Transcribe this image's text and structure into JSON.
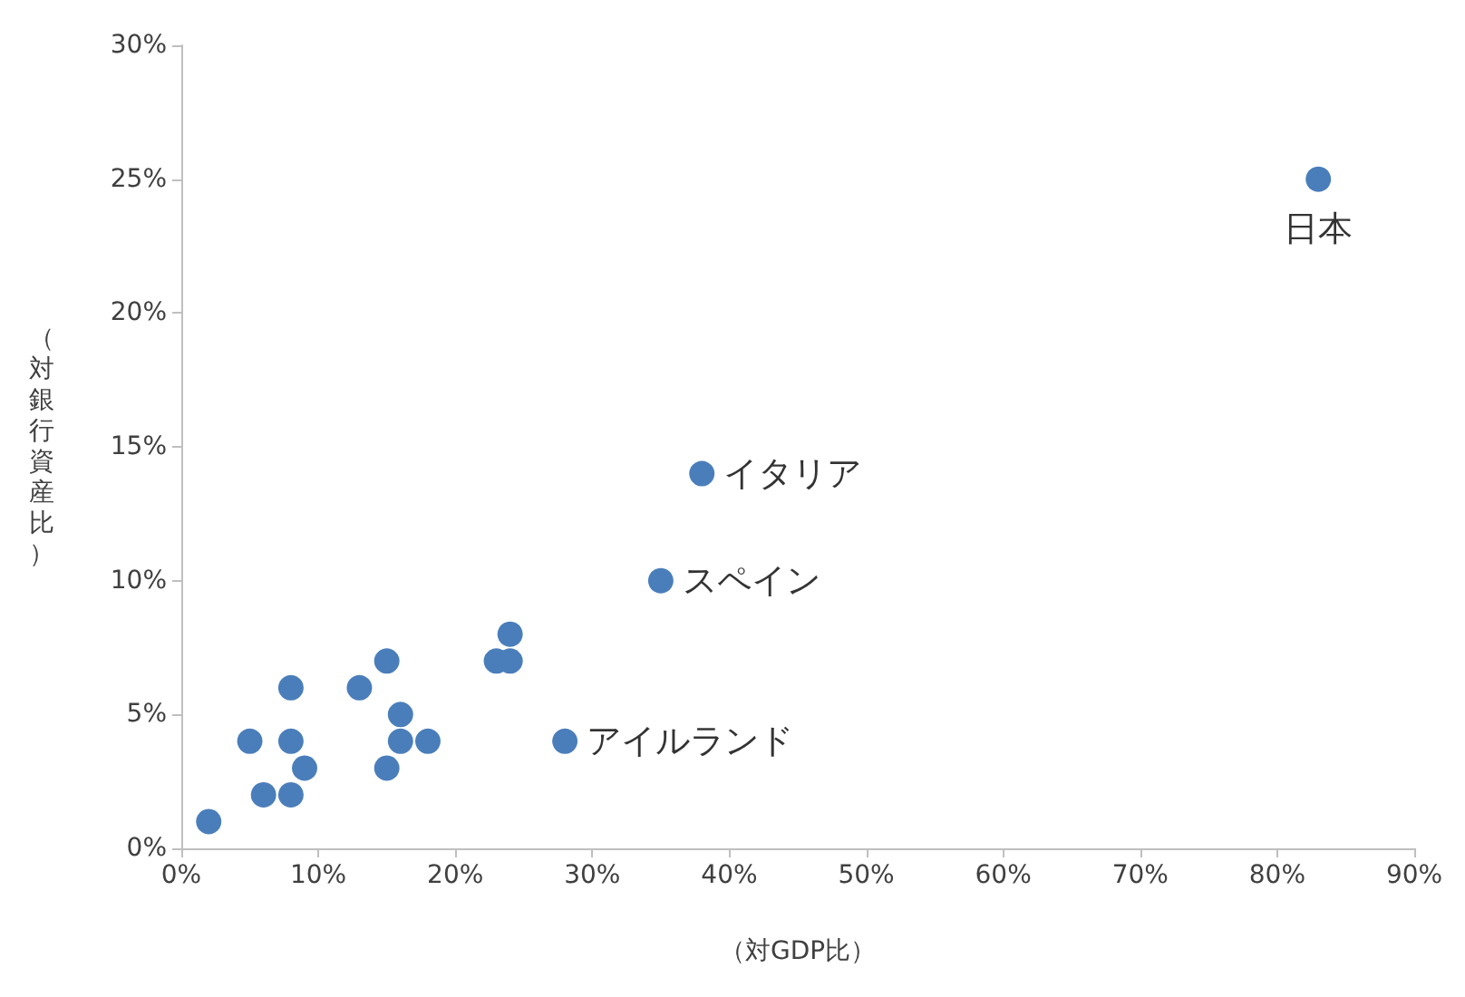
{
  "chart_data": {
    "type": "scatter",
    "xlabel": "（対GDP比）",
    "ylabel": "（対銀行資産比）",
    "x": [
      2,
      5,
      6,
      8,
      8,
      8,
      9,
      13,
      15,
      15,
      16,
      16,
      18,
      23,
      24,
      24,
      28,
      35,
      38,
      83
    ],
    "series": [
      {
        "color": "#4a7ebb",
        "values": [
          1,
          4,
          2,
          6,
          4,
          2,
          3,
          6,
          7,
          3,
          5,
          4,
          4,
          7,
          8,
          7,
          4,
          10,
          14,
          25
        ]
      }
    ],
    "annotations": [
      {
        "text": "アイルランド",
        "x": 28,
        "y": 4
      },
      {
        "text": "スペイン",
        "x": 35,
        "y": 10
      },
      {
        "text": "イタリア",
        "x": 38,
        "y": 14
      },
      {
        "text": "日本",
        "x": 83,
        "y": 25
      }
    ],
    "xlim": [
      0,
      90
    ],
    "xticks": [
      {
        "value": 0,
        "label": "0%"
      },
      {
        "value": 10,
        "label": "10%"
      },
      {
        "value": 20,
        "label": "20%"
      },
      {
        "value": 30,
        "label": "30%"
      },
      {
        "value": 40,
        "label": "40%"
      },
      {
        "value": 50,
        "label": "50%"
      },
      {
        "value": 60,
        "label": "60%"
      },
      {
        "value": 70,
        "label": "70%"
      },
      {
        "value": 80,
        "label": "80%"
      },
      {
        "value": 90,
        "label": "90%"
      }
    ],
    "ylim": [
      0,
      30
    ],
    "yticks": [
      {
        "value": 0,
        "label": "0%"
      },
      {
        "value": 5,
        "label": "5%"
      },
      {
        "value": 10,
        "label": "10%"
      },
      {
        "value": 15,
        "label": "15%"
      },
      {
        "value": 20,
        "label": "20%"
      },
      {
        "value": 25,
        "label": "25%"
      },
      {
        "value": 30,
        "label": "30%"
      }
    ],
    "grid": false,
    "marker": "circle"
  }
}
